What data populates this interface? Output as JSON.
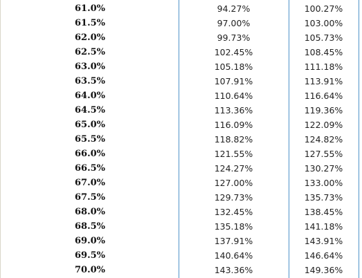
{
  "table": {
    "rows": [
      {
        "rate": "61.0%",
        "col_a": "94.27%",
        "col_b": "100.27%"
      },
      {
        "rate": "61.5%",
        "col_a": "97.00%",
        "col_b": "103.00%"
      },
      {
        "rate": "62.0%",
        "col_a": "99.73%",
        "col_b": "105.73%"
      },
      {
        "rate": "62.5%",
        "col_a": "102.45%",
        "col_b": "108.45%"
      },
      {
        "rate": "63.0%",
        "col_a": "105.18%",
        "col_b": "111.18%"
      },
      {
        "rate": "63.5%",
        "col_a": "107.91%",
        "col_b": "113.91%"
      },
      {
        "rate": "64.0%",
        "col_a": "110.64%",
        "col_b": "116.64%"
      },
      {
        "rate": "64.5%",
        "col_a": "113.36%",
        "col_b": "119.36%"
      },
      {
        "rate": "65.0%",
        "col_a": "116.09%",
        "col_b": "122.09%"
      },
      {
        "rate": "65.5%",
        "col_a": "118.82%",
        "col_b": "124.82%"
      },
      {
        "rate": "66.0%",
        "col_a": "121.55%",
        "col_b": "127.55%"
      },
      {
        "rate": "66.5%",
        "col_a": "124.27%",
        "col_b": "130.27%"
      },
      {
        "rate": "67.0%",
        "col_a": "127.00%",
        "col_b": "133.00%"
      },
      {
        "rate": "67.5%",
        "col_a": "129.73%",
        "col_b": "135.73%"
      },
      {
        "rate": "68.0%",
        "col_a": "132.45%",
        "col_b": "138.45%"
      },
      {
        "rate": "68.5%",
        "col_a": "135.18%",
        "col_b": "141.18%"
      },
      {
        "rate": "69.0%",
        "col_a": "137.91%",
        "col_b": "143.91%"
      },
      {
        "rate": "69.5%",
        "col_a": "140.64%",
        "col_b": "146.64%"
      },
      {
        "rate": "70.0%",
        "col_a": "143.36%",
        "col_b": "149.36%"
      }
    ]
  },
  "colors": {
    "divider": "#4f93c9",
    "text": "#222222",
    "background": "#ffffff"
  }
}
